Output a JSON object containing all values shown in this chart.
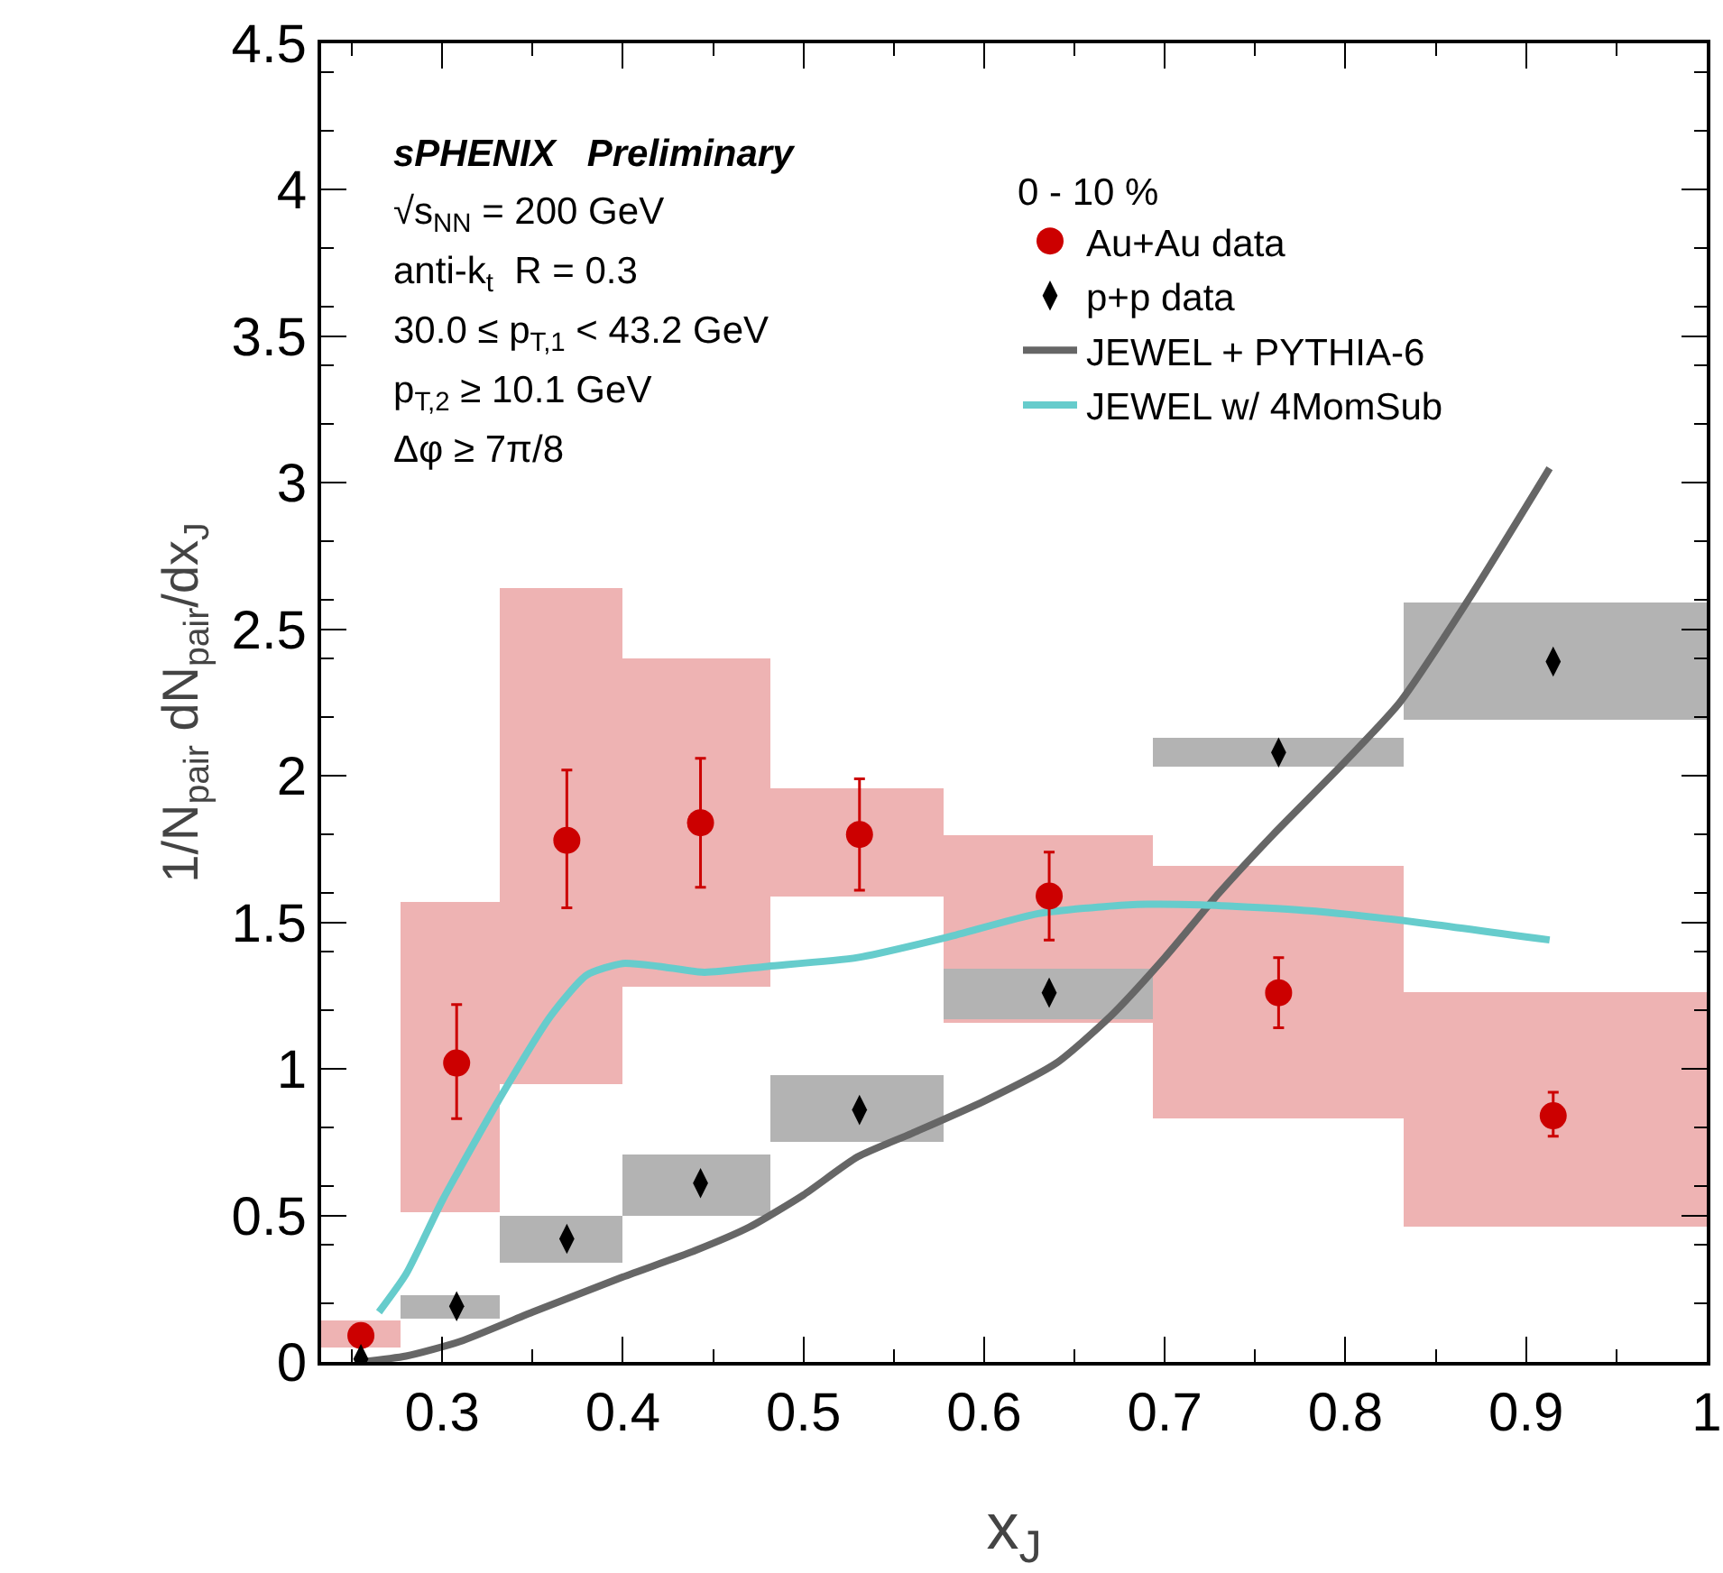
{
  "chart_data": {
    "type": "scatter",
    "xlabel": "x$_{J}$",
    "ylabel": "1/N$_{pair}$ dN$_{pair}$/dx$_{J}$",
    "legend_title": "0 - 10 %",
    "xlim": [
      0.233,
      1
    ],
    "xticks": [
      {
        "value": 0.3,
        "label": "0.3"
      },
      {
        "value": 0.4,
        "label": "0.4"
      },
      {
        "value": 0.5,
        "label": "0.5"
      },
      {
        "value": 0.6,
        "label": "0.6"
      },
      {
        "value": 0.7,
        "label": "0.7"
      },
      {
        "value": 0.8,
        "label": "0.8"
      },
      {
        "value": 0.9,
        "label": "0.9"
      },
      {
        "value": 1,
        "label": "1"
      }
    ],
    "ylim": [
      0,
      4.5
    ],
    "yticks": [
      0,
      0.5,
      1,
      1.5,
      2,
      2.5,
      3,
      3.5,
      4,
      4.5
    ],
    "grid": false,
    "legend": "top right",
    "annotations": [
      "sPHENIX   Preliminary",
      "√s$_{NN}$ = 200 GeV",
      "anti-k$_{t}$  R = 0.3",
      "30.0 ≤ p$_{T,1}$ < 43.2 GeV",
      "p$_{T,2}$ ≥ 10.1 GeV",
      "Δφ ≥ 7π/8"
    ],
    "series": [
      {
        "type": "histogram",
        "color": "#eeb3b3",
        "bins": [
          0.233,
          0.277,
          0.332,
          0.4,
          0.482,
          0.578,
          0.693,
          0.832,
          1
        ],
        "base": [
          0.05,
          0.51,
          0.95,
          1.28,
          1.59,
          1.16,
          0.83,
          0.46
        ],
        "values": [
          0.09,
          1.06,
          1.69,
          1.12,
          0.37,
          0.64,
          0.86,
          0.8
        ]
      },
      {
        "type": "histogram",
        "color": "#b3b3b3",
        "bins": [
          0.277,
          0.332,
          0.4,
          0.482,
          0.578,
          0.693,
          0.832,
          1
        ],
        "base": [
          0.15,
          0.34,
          0.5,
          0.75,
          1.17,
          2.03,
          2.19
        ],
        "values": [
          0.08,
          0.16,
          0.21,
          0.23,
          0.17,
          0.1,
          0.4
        ]
      },
      {
        "type": "line",
        "name": "JEWEL + PYTHIA-6",
        "color": "#666666",
        "marker": "none",
        "line_style": "solid",
        "x": [
          0.255,
          0.28,
          0.31,
          0.35,
          0.4,
          0.44,
          0.47,
          0.5,
          0.53,
          0.56,
          0.6,
          0.64,
          0.67,
          0.7,
          0.73,
          0.76,
          0.8,
          0.83,
          0.87,
          0.913
        ],
        "values": [
          0.0,
          0.02,
          0.07,
          0.17,
          0.29,
          0.38,
          0.46,
          0.57,
          0.7,
          0.78,
          0.89,
          1.02,
          1.18,
          1.38,
          1.6,
          1.8,
          2.05,
          2.25,
          2.62,
          3.05
        ]
      },
      {
        "type": "line",
        "name": "JEWEL w/ 4MomSub",
        "color": "#66cccc",
        "marker": "none",
        "line_style": "solid",
        "x": [
          0.265,
          0.28,
          0.3,
          0.33,
          0.36,
          0.38,
          0.4,
          0.42,
          0.445,
          0.48,
          0.53,
          0.58,
          0.63,
          0.68,
          0.72,
          0.78,
          0.84,
          0.913
        ],
        "values": [
          0.17,
          0.3,
          0.55,
          0.88,
          1.18,
          1.32,
          1.36,
          1.35,
          1.33,
          1.35,
          1.38,
          1.45,
          1.53,
          1.56,
          1.56,
          1.54,
          1.5,
          1.44
        ]
      },
      {
        "name": "Au+Au data",
        "color": "#cc0000",
        "marker": "circle",
        "x": [
          0.255,
          0.308,
          0.369,
          0.443,
          0.531,
          0.636,
          0.763,
          0.915
        ],
        "values": [
          0.09,
          1.02,
          1.78,
          1.84,
          1.8,
          1.59,
          1.26,
          0.84
        ],
        "errors": [
          null,
          [
            0.83,
            1.22
          ],
          [
            1.55,
            2.02
          ],
          [
            1.62,
            2.06
          ],
          [
            1.61,
            1.99
          ],
          [
            1.44,
            1.74
          ],
          [
            1.14,
            1.38
          ],
          [
            0.77,
            0.92
          ]
        ]
      },
      {
        "name": "p+p data",
        "color": "#000000",
        "marker": "diamond",
        "x": [
          0.255,
          0.308,
          0.369,
          0.443,
          0.531,
          0.636,
          0.763,
          0.915
        ],
        "values": [
          0.01,
          0.19,
          0.42,
          0.61,
          0.86,
          1.26,
          2.08,
          2.39
        ]
      }
    ]
  }
}
